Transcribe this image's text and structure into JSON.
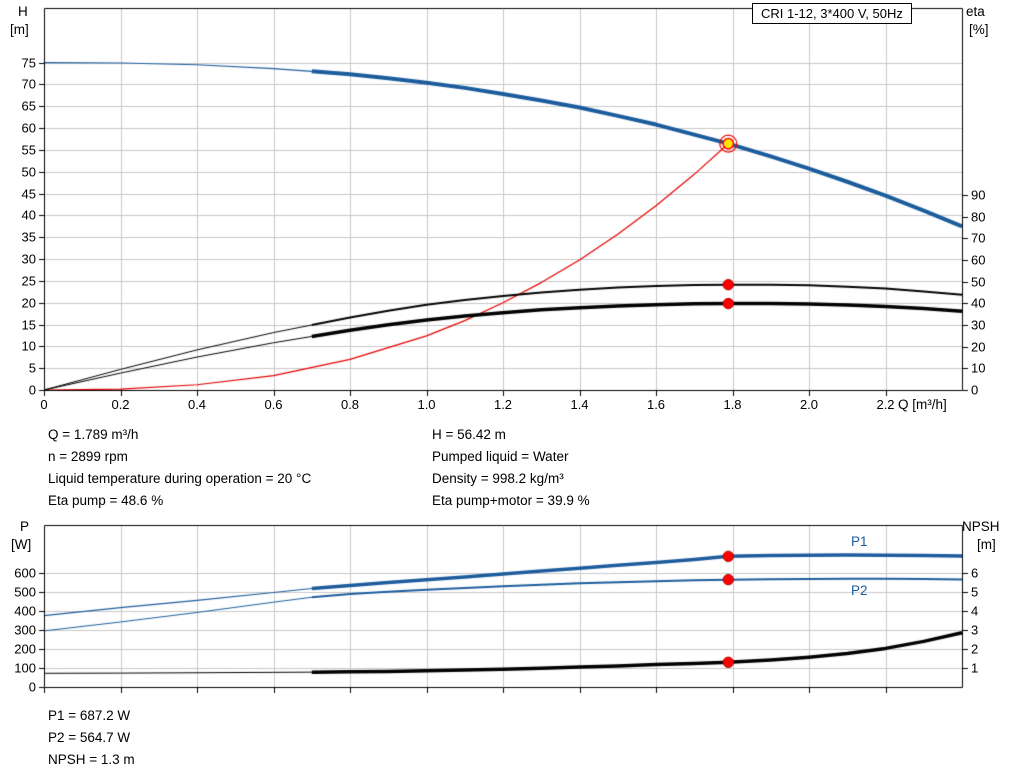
{
  "colors": {
    "curve_blue": "#1c5c9c",
    "curve_red": "#e60000",
    "curve_black": "#000000",
    "grid": "#c9c9c9",
    "frame": "#000000",
    "marker_red": "#ff0000",
    "marker_yellow": "#ffe800"
  },
  "info_left": [
    "Q = 1.789 m³/h",
    "n = 2899 rpm",
    "Liquid temperature during operation = 20 °C",
    "Eta pump = 48.6 %"
  ],
  "info_right": [
    "H = 56.42 m",
    "Pumped liquid = Water",
    "Density = 998.2 kg/m³",
    "Eta pump+motor = 39.9 %"
  ],
  "results": [
    "P1 = 687.2 W",
    "P2 = 564.7 W",
    "NPSH = 1.3 m"
  ],
  "chart_data": [
    {
      "type": "line",
      "title": "CRI 1-12, 3*400 V, 50Hz",
      "axes": {
        "x": {
          "label": "Q [m³/h]",
          "range": [
            0,
            2.4
          ],
          "ticks": [
            0,
            0.2,
            0.4,
            0.6,
            0.8,
            1,
            1.2,
            1.4,
            1.6,
            1.8,
            2,
            2.2
          ],
          "tick_labels": [
            "0",
            "0.2",
            "0.4",
            "0.6",
            "0.8",
            "1.0",
            "1.2",
            "1.4",
            "1.6",
            "1.8",
            "2.0",
            "2.2"
          ],
          "show_tick_labels": true
        },
        "left": {
          "name": "H",
          "unit": "[m]",
          "range": [
            0,
            87.5
          ],
          "ticks": [
            0,
            5,
            10,
            15,
            20,
            25,
            30,
            35,
            40,
            45,
            50,
            55,
            60,
            65,
            70,
            75
          ]
        },
        "right": {
          "name": "eta",
          "unit": "[%]",
          "range": [
            0,
            176.3
          ],
          "ticks": [
            0,
            10,
            20,
            30,
            40,
            50,
            60,
            70,
            80,
            90
          ]
        }
      },
      "series": [
        {
          "name": "H-curve-low-flow",
          "axis": "left",
          "color": "#1c5c9c",
          "width": 1.2,
          "points": [
            [
              0,
              75
            ],
            [
              0.2,
              74.9
            ],
            [
              0.4,
              74.5
            ],
            [
              0.6,
              73.6
            ],
            [
              0.7,
              73
            ]
          ]
        },
        {
          "name": "system-curve",
          "axis": "left",
          "color": "#e60000",
          "width": 1.2,
          "points": [
            [
              0,
              0
            ],
            [
              0.2,
              0.2
            ],
            [
              0.4,
              1.2
            ],
            [
              0.6,
              3.3
            ],
            [
              0.8,
              7
            ],
            [
              1,
              12.4
            ],
            [
              1.1,
              15.9
            ],
            [
              1.2,
              20
            ],
            [
              1.3,
              24.6
            ],
            [
              1.4,
              29.8
            ],
            [
              1.5,
              35.7
            ],
            [
              1.6,
              42.2
            ],
            [
              1.7,
              49.4
            ],
            [
              1.789,
              56.42
            ]
          ]
        },
        {
          "name": "eta-pump-low-flow",
          "axis": "right",
          "color": "#000000",
          "width": 1,
          "points": [
            [
              0,
              0
            ],
            [
              0.2,
              9.5
            ],
            [
              0.4,
              18.5
            ],
            [
              0.6,
              26.5
            ],
            [
              0.7,
              30
            ]
          ]
        },
        {
          "name": "eta-pump",
          "axis": "right",
          "color": "#000000",
          "width": 2,
          "points": [
            [
              0.7,
              30
            ],
            [
              0.8,
              33.5
            ],
            [
              0.9,
              36.6
            ],
            [
              1,
              39.3
            ],
            [
              1.1,
              41.5
            ],
            [
              1.2,
              43.4
            ],
            [
              1.3,
              45
            ],
            [
              1.4,
              46.3
            ],
            [
              1.5,
              47.3
            ],
            [
              1.6,
              48
            ],
            [
              1.7,
              48.5
            ],
            [
              1.789,
              48.6
            ],
            [
              1.9,
              48.6
            ],
            [
              2,
              48.3
            ],
            [
              2.1,
              47.7
            ],
            [
              2.2,
              46.8
            ],
            [
              2.3,
              45.5
            ],
            [
              2.4,
              44
            ]
          ]
        },
        {
          "name": "eta-pump-motor-low-flow",
          "axis": "right",
          "color": "#000000",
          "width": 1,
          "points": [
            [
              0,
              0
            ],
            [
              0.2,
              7.8
            ],
            [
              0.4,
              15.2
            ],
            [
              0.6,
              21.8
            ],
            [
              0.7,
              24.7
            ]
          ]
        },
        {
          "name": "eta-pump-motor",
          "axis": "right",
          "color": "#000000",
          "width": 3.5,
          "points": [
            [
              0.7,
              24.7
            ],
            [
              0.8,
              27.6
            ],
            [
              0.9,
              30.1
            ],
            [
              1,
              32.3
            ],
            [
              1.1,
              34.1
            ],
            [
              1.2,
              35.7
            ],
            [
              1.3,
              37
            ],
            [
              1.4,
              38
            ],
            [
              1.5,
              38.8
            ],
            [
              1.6,
              39.4
            ],
            [
              1.7,
              39.8
            ],
            [
              1.789,
              39.9
            ],
            [
              1.9,
              39.9
            ],
            [
              2,
              39.7
            ],
            [
              2.1,
              39.2
            ],
            [
              2.2,
              38.5
            ],
            [
              2.3,
              37.6
            ],
            [
              2.4,
              36.4
            ]
          ]
        },
        {
          "name": "H-curve",
          "axis": "left",
          "color": "#1c5c9c",
          "width": 4,
          "points": [
            [
              0.7,
              73
            ],
            [
              0.8,
              72.3
            ],
            [
              0.9,
              71.4
            ],
            [
              1,
              70.4
            ],
            [
              1.1,
              69.2
            ],
            [
              1.2,
              67.8
            ],
            [
              1.3,
              66.3
            ],
            [
              1.4,
              64.7
            ],
            [
              1.5,
              62.8
            ],
            [
              1.6,
              60.8
            ],
            [
              1.7,
              58.5
            ],
            [
              1.789,
              56.42
            ],
            [
              1.9,
              53.5
            ],
            [
              2,
              50.7
            ],
            [
              2.1,
              47.7
            ],
            [
              2.2,
              44.5
            ],
            [
              2.3,
              41.1
            ],
            [
              2.4,
              37.5
            ]
          ]
        }
      ],
      "markers": [
        {
          "name": "duty-point",
          "axis": "left",
          "q": 1.789,
          "value": 56.42,
          "style": "yellow-ring"
        },
        {
          "name": "eta-pump-point",
          "axis": "right",
          "q": 1.789,
          "value": 48.6,
          "style": "red-dot"
        },
        {
          "name": "eta-pump-motor-point",
          "axis": "right",
          "q": 1.789,
          "value": 39.9,
          "style": "red-dot"
        }
      ]
    },
    {
      "type": "line",
      "title": "",
      "legend": {
        "p1": "P1",
        "p2": "P2"
      },
      "axes": {
        "x": {
          "label": "",
          "range": [
            0,
            2.4
          ],
          "ticks": [
            0,
            0.2,
            0.4,
            0.6,
            0.8,
            1,
            1.2,
            1.4,
            1.6,
            1.8,
            2,
            2.2
          ],
          "show_tick_labels": false
        },
        "left": {
          "name": "P",
          "unit": "[W]",
          "range": [
            0,
            852
          ],
          "ticks": [
            0,
            100,
            200,
            300,
            400,
            500,
            600
          ]
        },
        "right": {
          "name": "NPSH",
          "unit": "[m]",
          "range": [
            0,
            8.52
          ],
          "ticks": [
            1,
            2,
            3,
            4,
            5,
            6
          ]
        }
      },
      "series": [
        {
          "name": "P1-low-flow",
          "axis": "left",
          "color": "#1c5c9c",
          "width": 1.2,
          "points": [
            [
              0,
              375
            ],
            [
              0.2,
              417
            ],
            [
              0.4,
              456
            ],
            [
              0.6,
              497
            ],
            [
              0.7,
              518
            ]
          ]
        },
        {
          "name": "P2-low-flow",
          "axis": "left",
          "color": "#1c5c9c",
          "width": 1,
          "points": [
            [
              0,
              295
            ],
            [
              0.2,
              342
            ],
            [
              0.4,
              392
            ],
            [
              0.6,
              446
            ],
            [
              0.7,
              472
            ]
          ]
        },
        {
          "name": "NPSH-low-flow",
          "axis": "right",
          "color": "#000000",
          "width": 1,
          "points": [
            [
              0,
              0.72
            ],
            [
              0.2,
              0.73
            ],
            [
              0.4,
              0.75
            ],
            [
              0.6,
              0.77
            ],
            [
              0.7,
              0.78
            ]
          ]
        },
        {
          "name": "P2-curve",
          "axis": "left",
          "color": "#1c5c9c",
          "width": 2,
          "points": [
            [
              0.7,
              472
            ],
            [
              0.8,
              489
            ],
            [
              0.9,
              501
            ],
            [
              1,
              512
            ],
            [
              1.1,
              521
            ],
            [
              1.2,
              530
            ],
            [
              1.3,
              538
            ],
            [
              1.4,
              545
            ],
            [
              1.5,
              551
            ],
            [
              1.6,
              556
            ],
            [
              1.7,
              561
            ],
            [
              1.789,
              564.7
            ],
            [
              1.9,
              567
            ],
            [
              2,
              568
            ],
            [
              2.1,
              569
            ],
            [
              2.2,
              569
            ],
            [
              2.3,
              568
            ],
            [
              2.4,
              566
            ]
          ]
        },
        {
          "name": "NPSH-curve",
          "axis": "right",
          "color": "#000000",
          "width": 3.5,
          "points": [
            [
              0.7,
              0.78
            ],
            [
              0.8,
              0.8
            ],
            [
              0.9,
              0.82
            ],
            [
              1,
              0.85
            ],
            [
              1.1,
              0.89
            ],
            [
              1.2,
              0.93
            ],
            [
              1.3,
              0.99
            ],
            [
              1.4,
              1.05
            ],
            [
              1.5,
              1.11
            ],
            [
              1.6,
              1.18
            ],
            [
              1.7,
              1.24
            ],
            [
              1.789,
              1.3
            ],
            [
              1.9,
              1.42
            ],
            [
              2,
              1.57
            ],
            [
              2.1,
              1.76
            ],
            [
              2.2,
              2.03
            ],
            [
              2.3,
              2.4
            ],
            [
              2.4,
              2.85
            ]
          ]
        },
        {
          "name": "P1-curve",
          "axis": "left",
          "color": "#1c5c9c",
          "width": 3.5,
          "points": [
            [
              0.7,
              518
            ],
            [
              0.8,
              534
            ],
            [
              0.9,
              549
            ],
            [
              1,
              564
            ],
            [
              1.1,
              579
            ],
            [
              1.2,
              594
            ],
            [
              1.3,
              610
            ],
            [
              1.4,
              625
            ],
            [
              1.5,
              640
            ],
            [
              1.6,
              655
            ],
            [
              1.7,
              671
            ],
            [
              1.789,
              687.2
            ],
            [
              1.9,
              691
            ],
            [
              2,
              693
            ],
            [
              2.1,
              694
            ],
            [
              2.2,
              693
            ],
            [
              2.3,
              691
            ],
            [
              2.4,
              689
            ]
          ]
        }
      ],
      "markers": [
        {
          "name": "p1-point",
          "axis": "left",
          "q": 1.789,
          "value": 687.2,
          "style": "red-dot"
        },
        {
          "name": "p2-point",
          "axis": "left",
          "q": 1.789,
          "value": 564.7,
          "style": "red-dot"
        },
        {
          "name": "npsh-point",
          "axis": "right",
          "q": 1.789,
          "value": 1.3,
          "style": "red-dot"
        }
      ]
    }
  ]
}
